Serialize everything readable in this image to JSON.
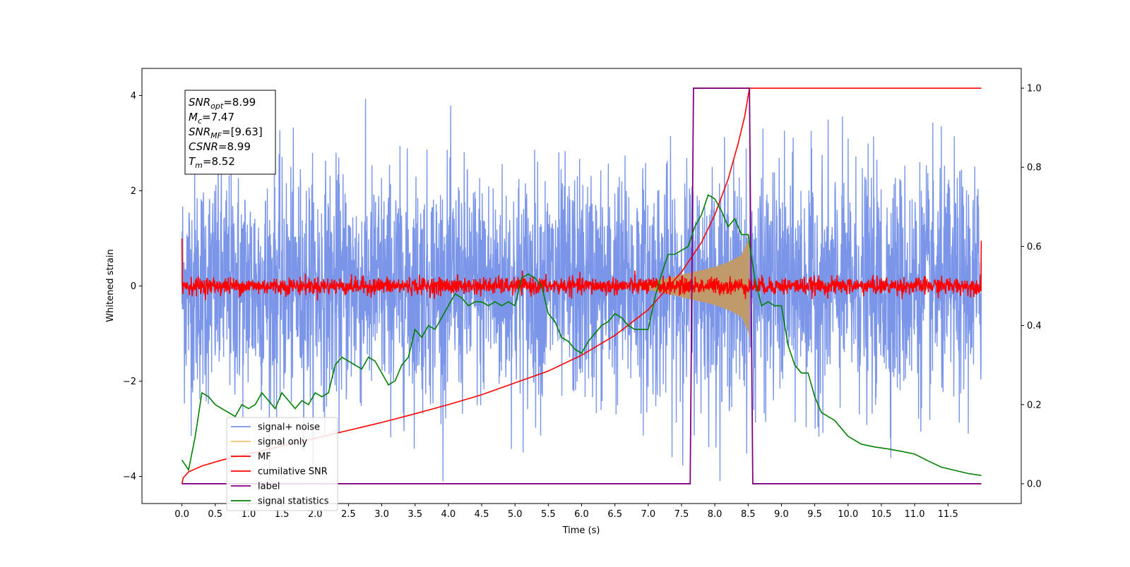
{
  "chart_data": {
    "type": "line",
    "title": "",
    "xlabel": "Time (s)",
    "ylabel": "Whitened strain",
    "xlim": [
      -0.6,
      12.6
    ],
    "ylim": [
      -4.57,
      4.57
    ],
    "y2lim": [
      -0.05,
      1.05
    ],
    "grid": false,
    "legend_position": "lower-left",
    "x_ticks": [
      "0.0",
      "0.5",
      "1.0",
      "1.5",
      "2.0",
      "2.5",
      "3.0",
      "3.5",
      "4.0",
      "4.5",
      "5.0",
      "5.5",
      "6.0",
      "6.5",
      "7.0",
      "7.5",
      "8.0",
      "8.5",
      "9.0",
      "9.5",
      "10.0",
      "10.5",
      "11.0",
      "11.5"
    ],
    "y_ticks": [
      "-4",
      "-2",
      "0",
      "2",
      "4"
    ],
    "y2_ticks": [
      "0.0",
      "0.2",
      "0.4",
      "0.6",
      "0.8",
      "1.0"
    ],
    "annotation": [
      {
        "base": "SNR",
        "sub": "opt",
        "value": "=8.99"
      },
      {
        "base": "M",
        "sub": "c",
        "value": "=7.47"
      },
      {
        "base": "SNR",
        "sub": "MF",
        "value": "=[9.63]"
      },
      {
        "base": "CSNR",
        "sub": "",
        "value": "=8.99"
      },
      {
        "base": "T",
        "sub": "m",
        "value": "=8.52"
      }
    ],
    "series": [
      {
        "name": "signal+ noise",
        "axis": "left",
        "color": "#7b96e8",
        "kind": "noise",
        "t_start": 0.0,
        "t_end": 12.0,
        "amplitude_std": 1.2
      },
      {
        "name": "signal only",
        "axis": "left",
        "color": "#c19a6b",
        "legend_color": "#f5c26b",
        "kind": "chirp",
        "envelope_x": [
          6.8,
          7.0,
          7.2,
          7.4,
          7.6,
          7.8,
          8.0,
          8.2,
          8.3,
          8.4,
          8.5,
          8.52
        ],
        "envelope_y": [
          0.03,
          0.08,
          0.14,
          0.2,
          0.27,
          0.33,
          0.4,
          0.5,
          0.57,
          0.65,
          0.95,
          1.15
        ]
      },
      {
        "name": "MF",
        "axis": "left",
        "color": "#ff0000",
        "kind": "mf",
        "t_start": 0.0,
        "t_end": 12.0,
        "amplitude_std": 0.09,
        "edge_values": [
          1.0,
          0.95
        ]
      },
      {
        "name": "cumilative SNR",
        "axis": "right",
        "color": "#ff0000",
        "x": [
          0.0,
          0.02,
          0.1,
          0.3,
          0.6,
          1.0,
          1.5,
          2.0,
          2.5,
          3.0,
          3.5,
          4.0,
          4.5,
          5.0,
          5.5,
          6.0,
          6.5,
          7.0,
          7.5,
          7.8,
          8.0,
          8.2,
          8.35,
          8.45,
          8.5,
          8.52,
          9.0,
          10.0,
          11.0,
          12.0
        ],
        "values": [
          0.0,
          0.015,
          0.03,
          0.045,
          0.06,
          0.075,
          0.095,
          0.115,
          0.135,
          0.155,
          0.177,
          0.2,
          0.225,
          0.255,
          0.285,
          0.325,
          0.375,
          0.44,
          0.535,
          0.61,
          0.68,
          0.77,
          0.86,
          0.93,
          0.98,
          1.0,
          1.0,
          1.0,
          1.0,
          1.0
        ]
      },
      {
        "name": "label",
        "axis": "right",
        "color": "#800080",
        "x": [
          0.0,
          7.63,
          7.68,
          8.52,
          8.57,
          12.0
        ],
        "values": [
          0.0,
          0.0,
          1.0,
          1.0,
          0.0,
          0.0
        ]
      },
      {
        "name": "signal statistics",
        "axis": "right",
        "color": "#008000",
        "x": [
          0.0,
          0.1,
          0.2,
          0.3,
          0.4,
          0.5,
          0.6,
          0.7,
          0.8,
          0.9,
          1.0,
          1.1,
          1.2,
          1.3,
          1.4,
          1.5,
          1.6,
          1.7,
          1.8,
          1.9,
          2.0,
          2.1,
          2.2,
          2.3,
          2.4,
          2.5,
          2.6,
          2.7,
          2.8,
          2.9,
          3.0,
          3.1,
          3.2,
          3.3,
          3.4,
          3.5,
          3.6,
          3.7,
          3.8,
          3.9,
          4.0,
          4.1,
          4.2,
          4.3,
          4.4,
          4.5,
          4.6,
          4.7,
          4.8,
          4.9,
          5.0,
          5.1,
          5.2,
          5.3,
          5.4,
          5.5,
          5.6,
          5.7,
          5.8,
          5.9,
          6.0,
          6.1,
          6.2,
          6.3,
          6.4,
          6.5,
          6.6,
          6.7,
          6.8,
          6.9,
          7.0,
          7.1,
          7.2,
          7.3,
          7.4,
          7.5,
          7.6,
          7.7,
          7.8,
          7.9,
          8.0,
          8.1,
          8.2,
          8.3,
          8.4,
          8.5,
          8.6,
          8.7,
          8.8,
          8.9,
          9.0,
          9.1,
          9.2,
          9.3,
          9.4,
          9.5,
          9.6,
          9.7,
          9.8,
          9.9,
          10.0,
          10.2,
          10.4,
          10.6,
          10.8,
          11.0,
          11.2,
          11.4,
          11.6,
          11.8,
          12.0
        ],
        "values": [
          0.06,
          0.035,
          0.12,
          0.23,
          0.22,
          0.2,
          0.19,
          0.18,
          0.17,
          0.2,
          0.19,
          0.2,
          0.23,
          0.21,
          0.19,
          0.23,
          0.21,
          0.19,
          0.21,
          0.2,
          0.23,
          0.22,
          0.23,
          0.3,
          0.32,
          0.31,
          0.3,
          0.29,
          0.32,
          0.31,
          0.28,
          0.25,
          0.26,
          0.3,
          0.32,
          0.39,
          0.37,
          0.4,
          0.39,
          0.42,
          0.45,
          0.48,
          0.47,
          0.45,
          0.46,
          0.46,
          0.45,
          0.46,
          0.45,
          0.46,
          0.45,
          0.52,
          0.53,
          0.52,
          0.5,
          0.43,
          0.41,
          0.37,
          0.36,
          0.34,
          0.33,
          0.36,
          0.38,
          0.4,
          0.41,
          0.43,
          0.42,
          0.4,
          0.39,
          0.39,
          0.39,
          0.47,
          0.53,
          0.58,
          0.58,
          0.59,
          0.6,
          0.65,
          0.68,
          0.73,
          0.72,
          0.69,
          0.65,
          0.67,
          0.63,
          0.63,
          0.52,
          0.45,
          0.46,
          0.45,
          0.45,
          0.35,
          0.3,
          0.28,
          0.28,
          0.22,
          0.18,
          0.17,
          0.16,
          0.14,
          0.12,
          0.1,
          0.093,
          0.088,
          0.082,
          0.075,
          0.058,
          0.042,
          0.034,
          0.026,
          0.021
        ]
      }
    ]
  }
}
